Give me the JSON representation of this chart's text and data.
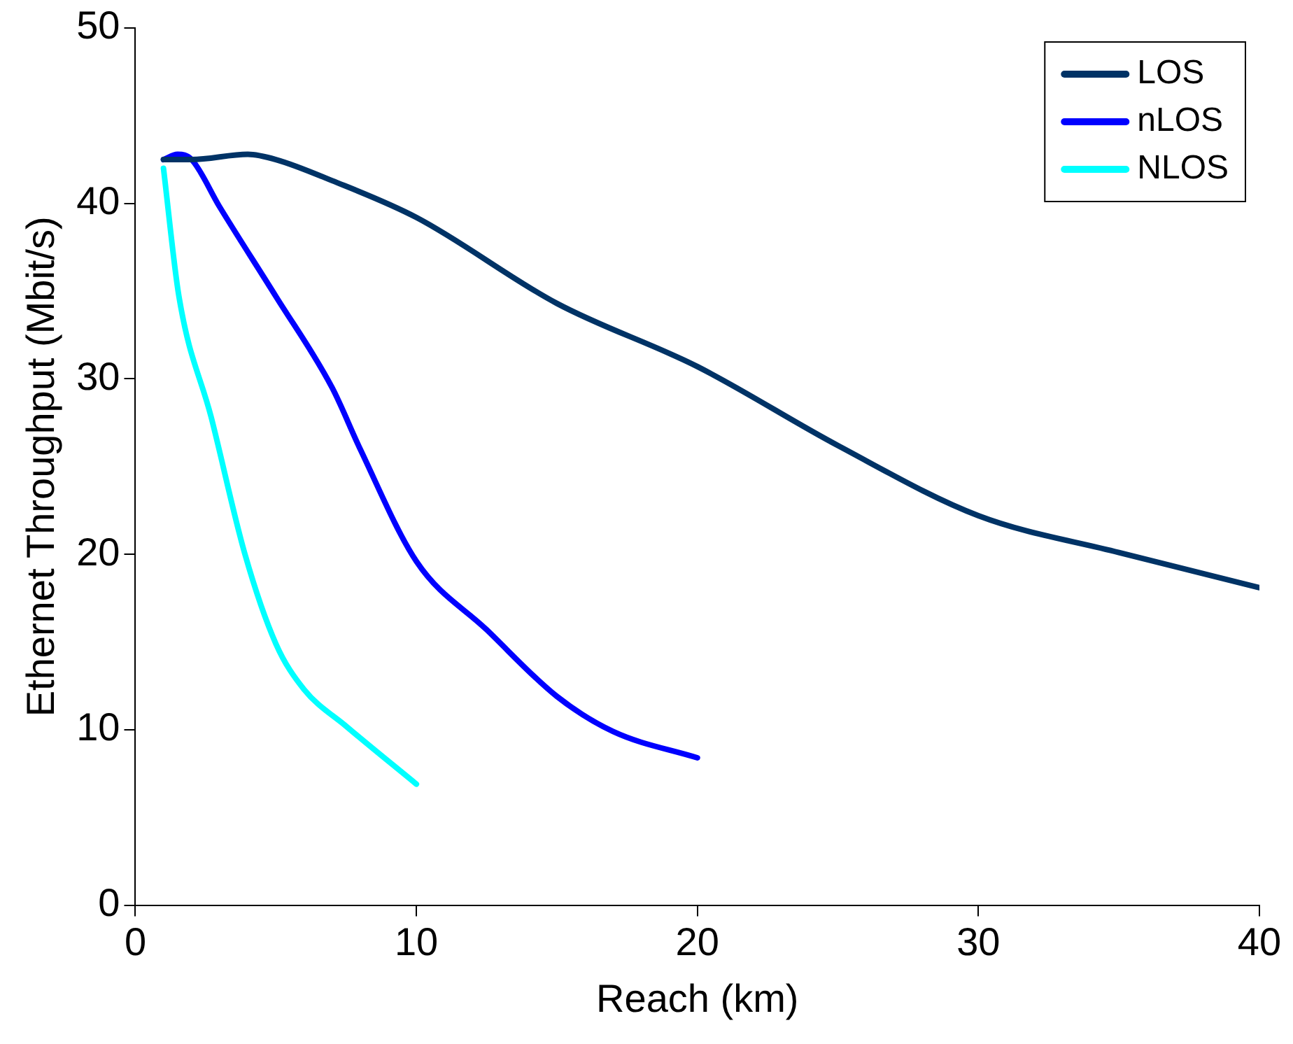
{
  "chart_data": {
    "type": "line",
    "xlabel": "Reach (km)",
    "ylabel": "Ethernet Throughput (Mbit/s)",
    "xlim": [
      0,
      40
    ],
    "xticks": [
      0,
      10,
      20,
      30,
      40
    ],
    "ylim": [
      0,
      50
    ],
    "yticks": [
      0,
      10,
      20,
      30,
      40,
      50
    ],
    "grid": false,
    "legend": "top right",
    "marker": "none",
    "line_style": "solid",
    "series": [
      {
        "name": "LOS",
        "color": "#003366",
        "x": [
          1,
          2,
          4,
          5,
          7,
          10,
          15,
          20,
          25,
          30,
          35,
          40
        ],
        "values": [
          42.5,
          42.5,
          42.8,
          42.5,
          41.3,
          39.2,
          34.3,
          30.7,
          26.2,
          22.2,
          20.1,
          18.1
        ]
      },
      {
        "name": "nLOS",
        "color": "#0000ff",
        "x": [
          1,
          1.5,
          2,
          3,
          5,
          7,
          8,
          10,
          12.5,
          15,
          17,
          20
        ],
        "values": [
          42.5,
          42.8,
          42.5,
          39.8,
          34.7,
          29.5,
          26,
          19.6,
          15.7,
          11.9,
          9.9,
          8.4
        ]
      },
      {
        "name": "NLOS",
        "color": "#00ffff",
        "x": [
          1,
          1.55,
          2.7,
          3.9,
          5,
          6,
          7.5,
          10
        ],
        "values": [
          42,
          34.7,
          27.8,
          20,
          14.9,
          12.3,
          10.2,
          6.9
        ]
      }
    ]
  }
}
